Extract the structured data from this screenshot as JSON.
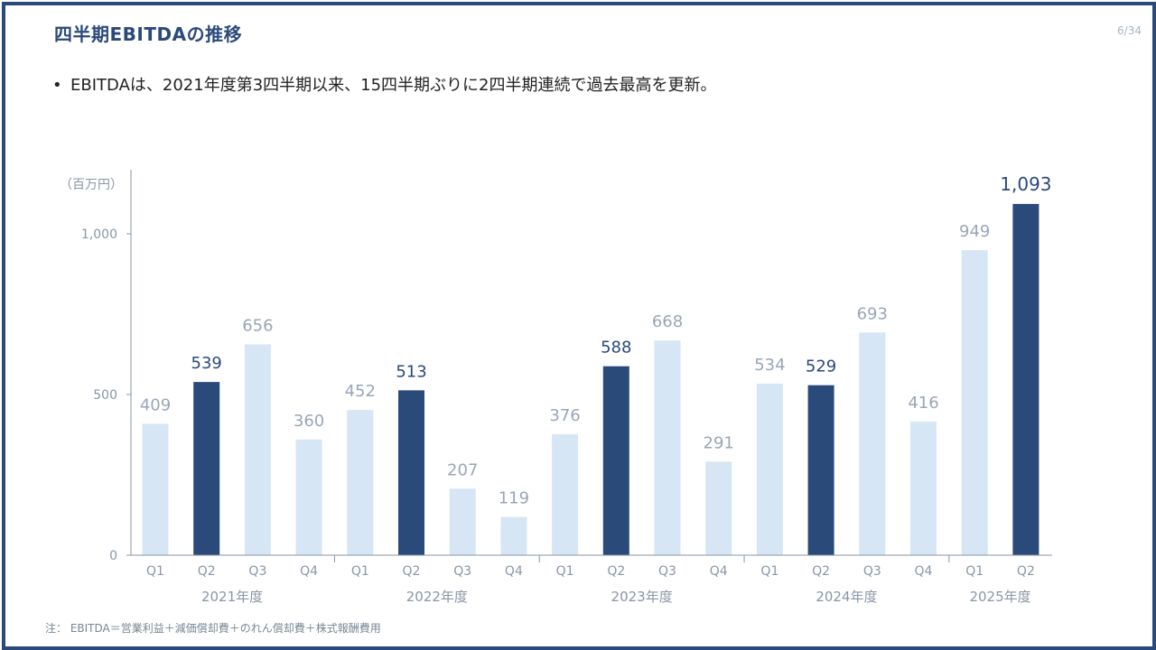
{
  "slide": {
    "title": "四半期EBITDAの推移",
    "page_number": "6/34",
    "bullet": "EBITDAは、2021年度第3四半期以来、15四半期ぶりに2四半期連続で過去最高を更新。",
    "note": "注： EBITDA＝営業利益＋減価償却費＋のれん償却費＋株式報酬費用"
  },
  "colors": {
    "highlight": "#2a4a7a",
    "normal": "#d6e6f5",
    "axis": "#8a96a6"
  },
  "chart_data": {
    "type": "bar",
    "unit_label": "（百万円）",
    "ylim": [
      0,
      1200
    ],
    "yticks": [
      0,
      500,
      1000
    ],
    "ytick_labels": [
      "0",
      "500",
      "1,000"
    ],
    "grid": false,
    "categories": [
      "Q1",
      "Q2",
      "Q3",
      "Q4",
      "Q1",
      "Q2",
      "Q3",
      "Q4",
      "Q1",
      "Q2",
      "Q3",
      "Q4",
      "Q1",
      "Q2",
      "Q3",
      "Q4",
      "Q1",
      "Q2"
    ],
    "groups": [
      {
        "label": "2021年度",
        "start": 0,
        "count": 4
      },
      {
        "label": "2022年度",
        "start": 4,
        "count": 4
      },
      {
        "label": "2023年度",
        "start": 8,
        "count": 4
      },
      {
        "label": "2024年度",
        "start": 12,
        "count": 4
      },
      {
        "label": "2025年度",
        "start": 16,
        "count": 2
      }
    ],
    "values": [
      409,
      539,
      656,
      360,
      452,
      513,
      207,
      119,
      376,
      588,
      668,
      291,
      534,
      529,
      693,
      416,
      949,
      1093
    ],
    "value_labels": [
      "409",
      "539",
      "656",
      "360",
      "452",
      "513",
      "207",
      "119",
      "376",
      "588",
      "668",
      "291",
      "534",
      "529",
      "693",
      "416",
      "949",
      "1,093"
    ],
    "highlighted": [
      1,
      5,
      9,
      13,
      17
    ]
  }
}
